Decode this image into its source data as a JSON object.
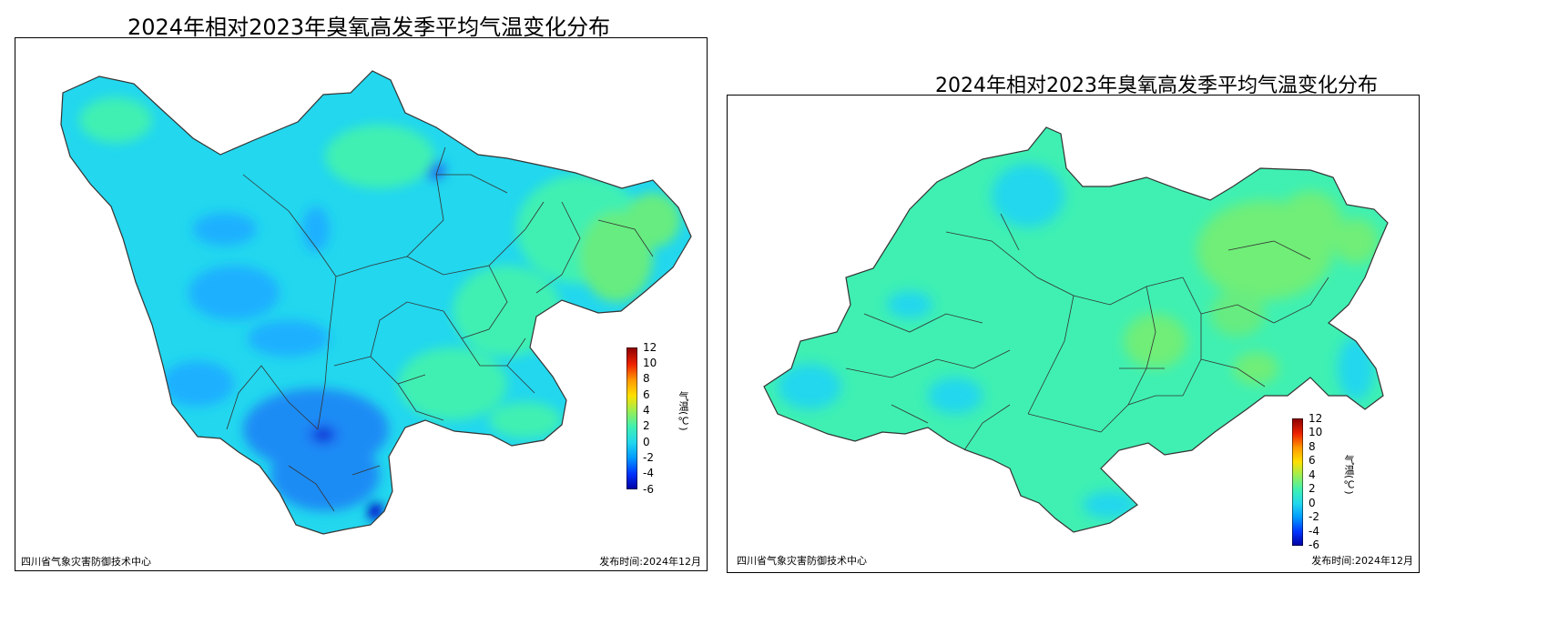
{
  "maps": [
    {
      "title": "2024年相对2023年臭氧高发季平均气温变化分布",
      "footer_left": "四川省气象灾害防御技术中心",
      "footer_right": "发布时间:2024年12月",
      "colorbar_unit": "气温(℃)",
      "colorbar_ticks": [
        "12",
        "10",
        "8",
        "6",
        "4",
        "2",
        "0",
        "-2",
        "-4",
        "-6"
      ],
      "colorbar_range": [
        -6,
        12
      ]
    },
    {
      "title": "2024年相对2023年臭氧高发季平均气温变化分布",
      "footer_left": "四川省气象灾害防御技术中心",
      "footer_right": "发布时间:2024年12月",
      "colorbar_unit": "气温(℃)",
      "colorbar_ticks": [
        "12",
        "10",
        "8",
        "6",
        "4",
        "2",
        "0",
        "-2",
        "-4",
        "-6"
      ],
      "colorbar_range": [
        -6,
        12
      ]
    }
  ],
  "colors": {
    "deep_blue": "#0000c8",
    "blue": "#1e6bf0",
    "light_blue": "#1ab0ff",
    "cyan": "#22d7ee",
    "aqua_green": "#3ff0b2",
    "green": "#7cf06a",
    "yellow": "#ffe000",
    "orange": "#ff8a00",
    "red": "#dd0000",
    "dark_red": "#8a0000"
  }
}
